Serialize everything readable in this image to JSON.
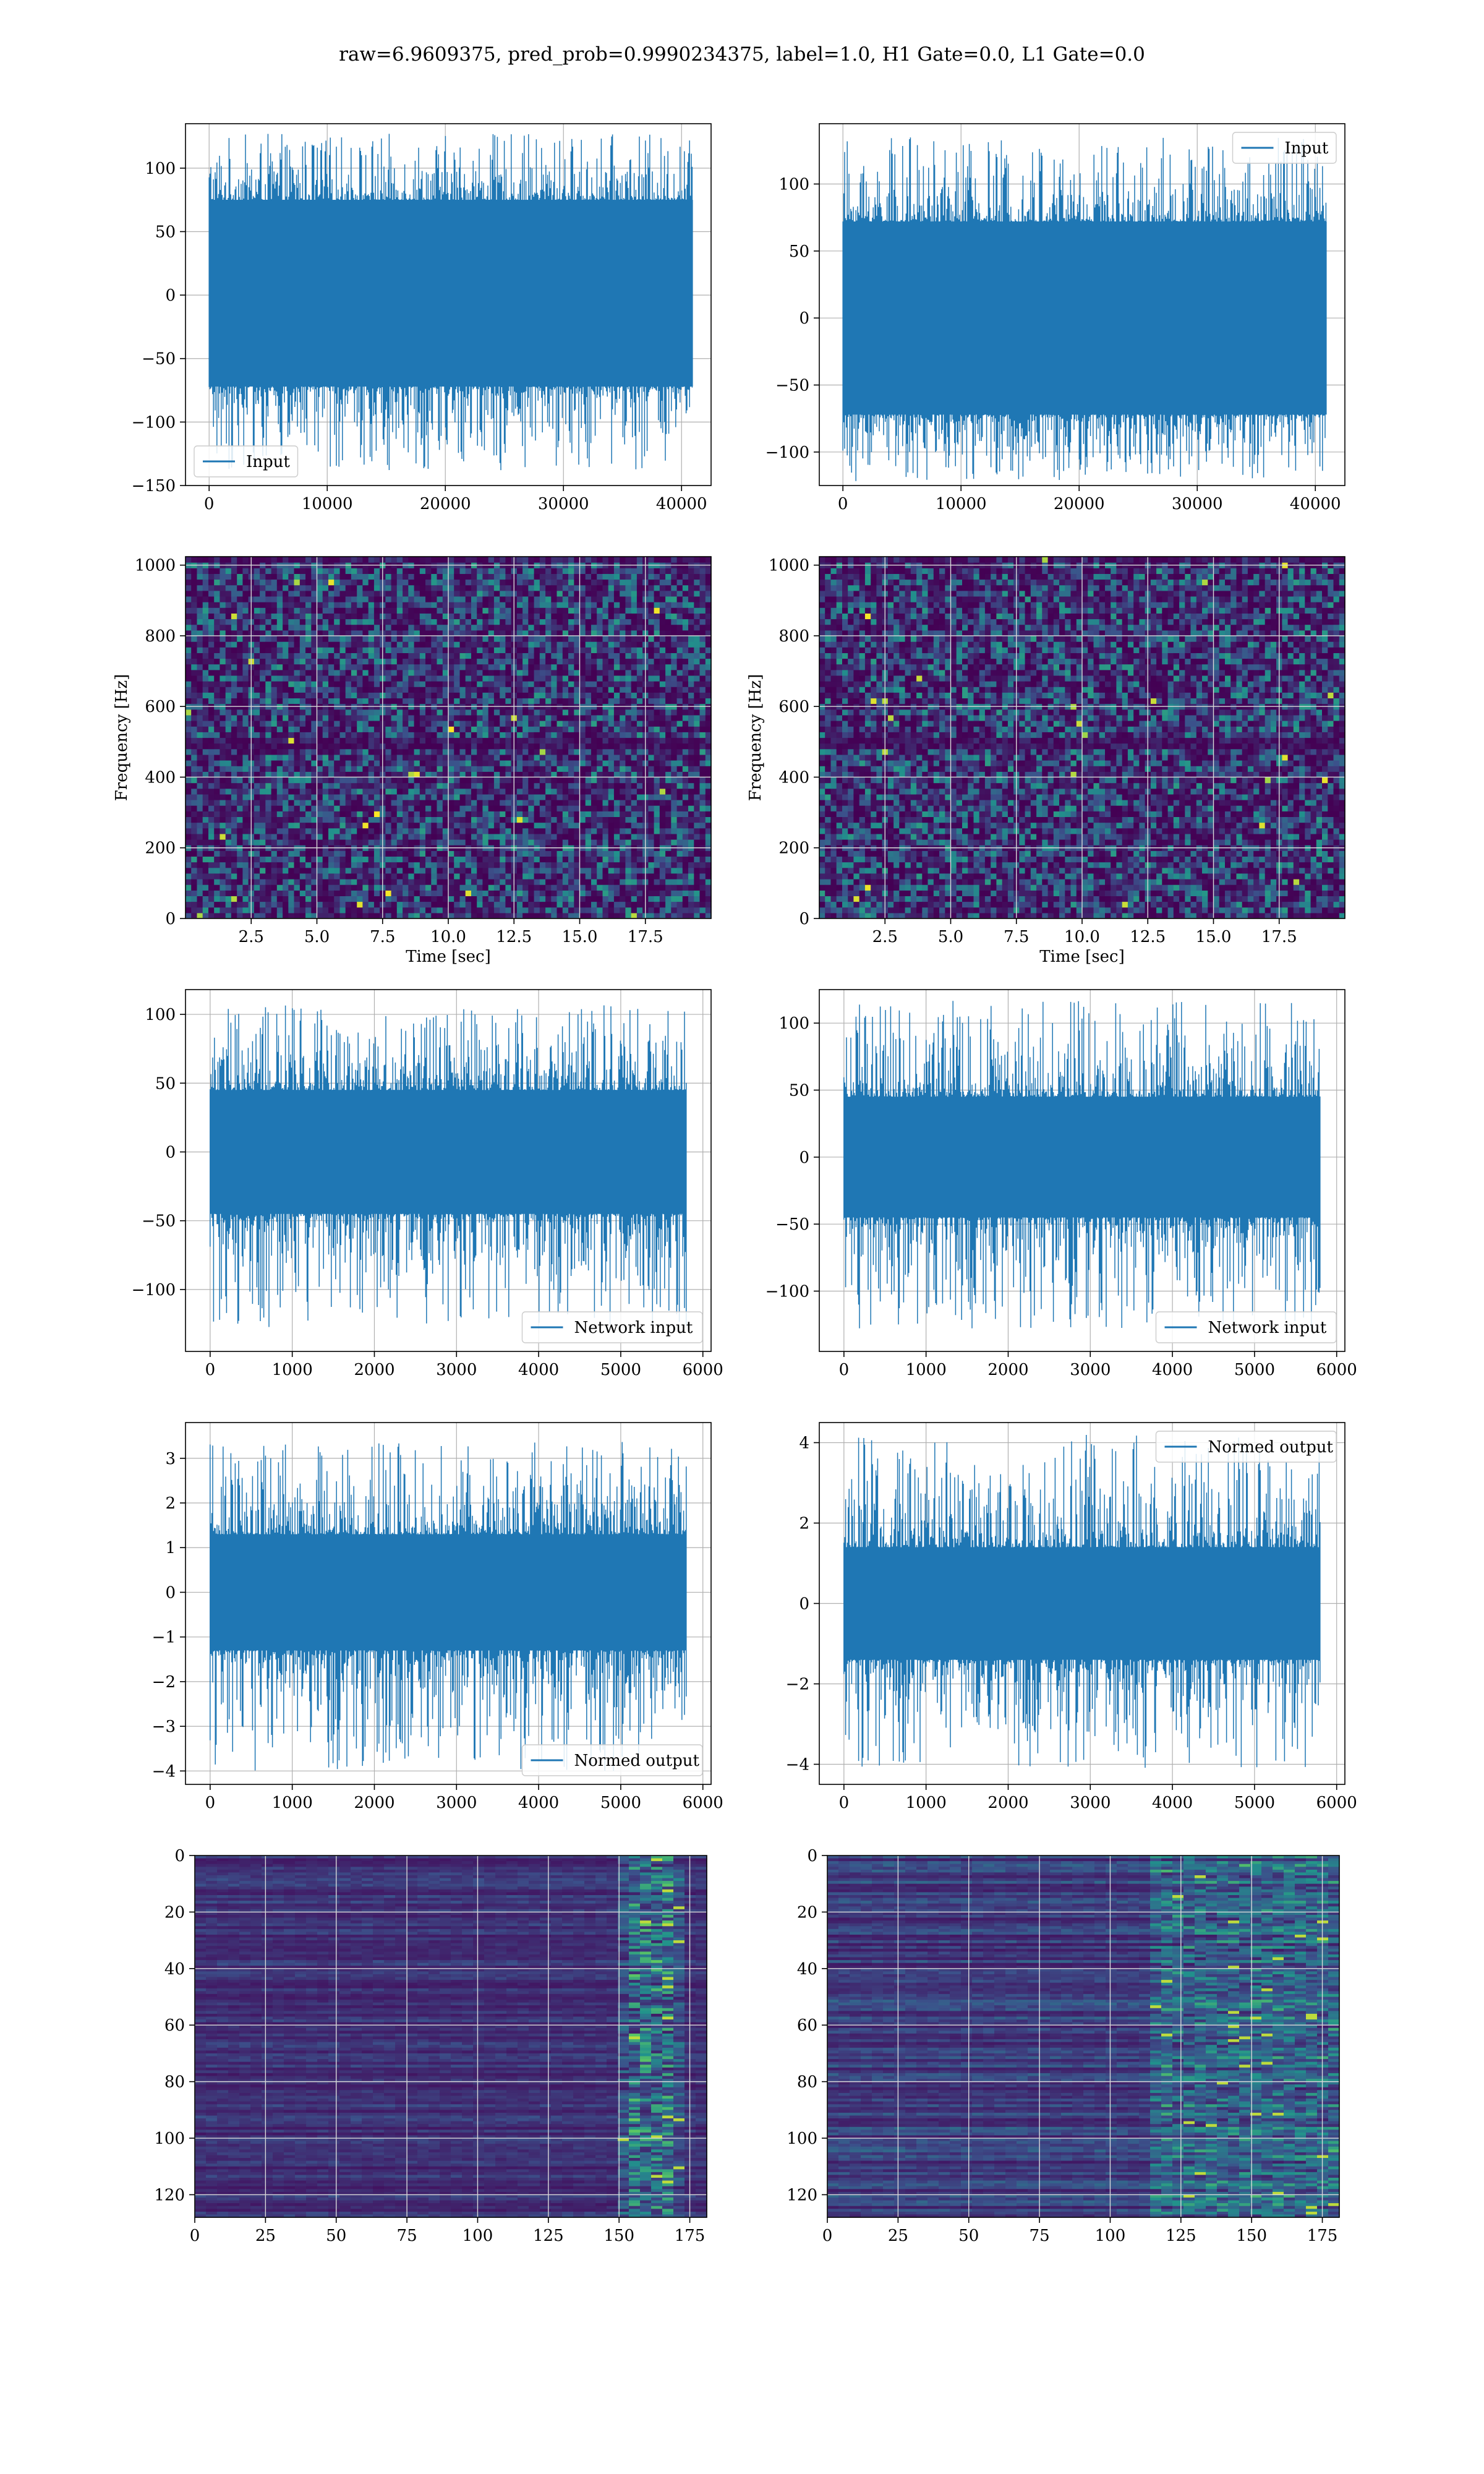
{
  "figure": {
    "title": "raw=6.9609375, pred_prob=0.9990234375, label=1.0, H1 Gate=0.0, L1 Gate=0.0"
  },
  "colors": {
    "line": "#1f77b4",
    "grid": "#b0b0b0",
    "viridis_low": "#440154",
    "viridis_mid": "#21918c",
    "viridis_high": "#fde725"
  },
  "chart_data": [
    {
      "type": "line",
      "panel": "row1-left",
      "legend": [
        "Input"
      ],
      "legend_loc": "lower left",
      "xlim": [
        -2000,
        42500
      ],
      "ylim": [
        -150,
        135
      ],
      "xticks": [
        0,
        10000,
        20000,
        30000,
        40000
      ],
      "yticks": [
        -150,
        -100,
        -50,
        0,
        50,
        100
      ],
      "x_range": [
        0,
        40960
      ],
      "core": [
        -72,
        75
      ],
      "spike_range": [
        -138,
        127
      ],
      "grid": true
    },
    {
      "type": "line",
      "panel": "row1-right",
      "legend": [
        "Input"
      ],
      "legend_loc": "upper right",
      "xlim": [
        -2000,
        42500
      ],
      "ylim": [
        -125,
        145
      ],
      "xticks": [
        0,
        10000,
        20000,
        30000,
        40000
      ],
      "yticks": [
        -100,
        -50,
        0,
        50,
        100
      ],
      "x_range": [
        0,
        40960
      ],
      "core": [
        -72,
        72
      ],
      "spike_range": [
        -122,
        135
      ],
      "grid": true
    },
    {
      "type": "heatmap",
      "panel": "row2-left",
      "xlabel": "Time [sec]",
      "ylabel": "Frequency [Hz]",
      "xlim": [
        0,
        20
      ],
      "ylim": [
        0,
        1024
      ],
      "xticks": [
        2.5,
        5.0,
        7.5,
        10.0,
        12.5,
        15.0,
        17.5
      ],
      "yticks": [
        0,
        200,
        400,
        600,
        800,
        1000
      ],
      "colormap": "viridis",
      "grid": true
    },
    {
      "type": "heatmap",
      "panel": "row2-right",
      "xlabel": "Time [sec]",
      "ylabel": "Frequency [Hz]",
      "xlim": [
        0,
        20
      ],
      "ylim": [
        0,
        1024
      ],
      "xticks": [
        2.5,
        5.0,
        7.5,
        10.0,
        12.5,
        15.0,
        17.5
      ],
      "yticks": [
        0,
        200,
        400,
        600,
        800,
        1000
      ],
      "colormap": "viridis",
      "grid": true
    },
    {
      "type": "line",
      "panel": "row3-left",
      "legend": [
        "Network input"
      ],
      "legend_loc": "lower right",
      "xlim": [
        -300,
        6100
      ],
      "ylim": [
        -145,
        118
      ],
      "xticks": [
        0,
        1000,
        2000,
        3000,
        4000,
        5000,
        6000
      ],
      "yticks": [
        -100,
        -50,
        0,
        50,
        100
      ],
      "x_range": [
        0,
        5800
      ],
      "core": [
        -45,
        45
      ],
      "spike_range": [
        -128,
        108
      ],
      "grid": true
    },
    {
      "type": "line",
      "panel": "row3-right",
      "legend": [
        "Network input"
      ],
      "legend_loc": "lower right",
      "xlim": [
        -300,
        6100
      ],
      "ylim": [
        -145,
        125
      ],
      "xticks": [
        0,
        1000,
        2000,
        3000,
        4000,
        5000,
        6000
      ],
      "yticks": [
        -100,
        -50,
        0,
        50,
        100
      ],
      "x_range": [
        0,
        5800
      ],
      "core": [
        -45,
        45
      ],
      "spike_range": [
        -128,
        117
      ],
      "grid": true
    },
    {
      "type": "line",
      "panel": "row4-left",
      "legend": [
        "Normed output"
      ],
      "legend_loc": "lower right",
      "xlim": [
        -300,
        6100
      ],
      "ylim": [
        -4.3,
        3.8
      ],
      "xticks": [
        0,
        1000,
        2000,
        3000,
        4000,
        5000,
        6000
      ],
      "yticks": [
        -4,
        -3,
        -2,
        -1,
        0,
        1,
        2,
        3
      ],
      "x_range": [
        0,
        5800
      ],
      "core": [
        -1.3,
        1.3
      ],
      "spike_range": [
        -4.0,
        3.4
      ],
      "grid": true
    },
    {
      "type": "line",
      "panel": "row4-right",
      "legend": [
        "Normed output"
      ],
      "legend_loc": "upper right",
      "xlim": [
        -300,
        6100
      ],
      "ylim": [
        -4.5,
        4.5
      ],
      "xticks": [
        0,
        1000,
        2000,
        3000,
        4000,
        5000,
        6000
      ],
      "yticks": [
        -4,
        -2,
        0,
        2,
        4
      ],
      "x_range": [
        0,
        5800
      ],
      "core": [
        -1.4,
        1.4
      ],
      "spike_range": [
        -4.1,
        4.2
      ],
      "grid": true
    },
    {
      "type": "heatmap",
      "panel": "row5-left",
      "xlim": [
        0,
        181
      ],
      "ylim": [
        128,
        0
      ],
      "xticks": [
        0,
        25,
        50,
        75,
        100,
        125,
        150,
        175
      ],
      "yticks": [
        0,
        20,
        40,
        60,
        80,
        100,
        120
      ],
      "colormap": "viridis",
      "bright_columns": [
        150,
        172
      ],
      "grid": true
    },
    {
      "type": "heatmap",
      "panel": "row5-right",
      "xlim": [
        0,
        181
      ],
      "ylim": [
        128,
        0
      ],
      "xticks": [
        0,
        25,
        50,
        75,
        100,
        125,
        150,
        175
      ],
      "yticks": [
        0,
        20,
        40,
        60,
        80,
        100,
        120
      ],
      "colormap": "viridis",
      "bright_columns": [
        115,
        181
      ],
      "grid": true
    }
  ]
}
